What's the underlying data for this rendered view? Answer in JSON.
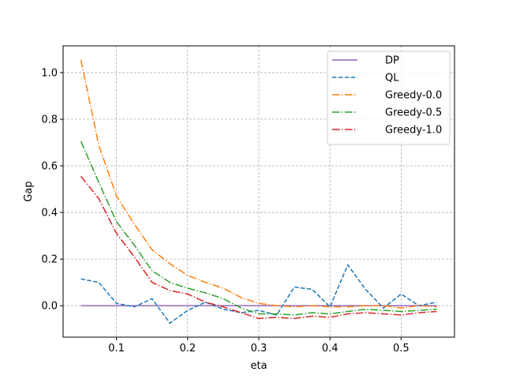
{
  "chart_data": {
    "type": "line",
    "xlabel": "eta",
    "ylabel": "Gap",
    "xlim": [
      0.025,
      0.575
    ],
    "ylim": [
      -0.135,
      1.115
    ],
    "xticks": [
      0.1,
      0.2,
      0.3,
      0.4,
      0.5
    ],
    "xtick_labels": [
      "0.1",
      "0.2",
      "0.3",
      "0.4",
      "0.5"
    ],
    "yticks": [
      0.0,
      0.2,
      0.4,
      0.6,
      0.8,
      1.0
    ],
    "ytick_labels": [
      "0.0",
      "0.2",
      "0.4",
      "0.6",
      "0.8",
      "1.0"
    ],
    "grid": true,
    "legend_position": "top-right",
    "x": [
      0.05,
      0.075,
      0.1,
      0.125,
      0.15,
      0.175,
      0.2,
      0.225,
      0.25,
      0.275,
      0.3,
      0.325,
      0.35,
      0.375,
      0.4,
      0.425,
      0.45,
      0.475,
      0.5,
      0.525,
      0.55
    ],
    "series": [
      {
        "name": "DP",
        "color": "#9467bd",
        "dash": "solid",
        "values": [
          0.0,
          0.0,
          0.0,
          0.0,
          0.0,
          0.0,
          0.0,
          0.0,
          0.0,
          0.0,
          0.0,
          0.0,
          0.0,
          0.0,
          0.0,
          0.0,
          0.0,
          0.0,
          0.0,
          0.0,
          0.0
        ]
      },
      {
        "name": "QL",
        "color": "#1f77b4",
        "dash": "dashed",
        "values": [
          0.115,
          0.1,
          0.01,
          -0.005,
          0.03,
          -0.075,
          -0.02,
          0.015,
          -0.015,
          -0.03,
          -0.02,
          -0.04,
          0.08,
          0.07,
          -0.005,
          0.175,
          0.07,
          -0.01,
          0.05,
          0.0,
          0.015
        ]
      },
      {
        "name": "Greedy-0.0",
        "color": "#ff7f0e",
        "dash": "dashdot",
        "values": [
          1.055,
          0.69,
          0.47,
          0.35,
          0.24,
          0.18,
          0.13,
          0.1,
          0.075,
          0.035,
          0.01,
          0.0,
          -0.005,
          0.0,
          -0.005,
          -0.005,
          0.0,
          0.0,
          -0.01,
          0.0,
          -0.005
        ]
      },
      {
        "name": "Greedy-0.5",
        "color": "#2ca02c",
        "dash": "dashdot",
        "values": [
          0.705,
          0.53,
          0.36,
          0.26,
          0.15,
          0.1,
          0.075,
          0.055,
          0.03,
          -0.01,
          -0.035,
          -0.035,
          -0.04,
          -0.03,
          -0.035,
          -0.025,
          -0.015,
          -0.02,
          -0.025,
          -0.02,
          -0.015
        ]
      },
      {
        "name": "Greedy-1.0",
        "color": "#d62728",
        "dash": "dashdot",
        "values": [
          0.555,
          0.46,
          0.31,
          0.21,
          0.1,
          0.065,
          0.05,
          0.015,
          -0.005,
          -0.03,
          -0.055,
          -0.05,
          -0.055,
          -0.045,
          -0.05,
          -0.035,
          -0.03,
          -0.035,
          -0.04,
          -0.03,
          -0.025
        ]
      }
    ]
  }
}
